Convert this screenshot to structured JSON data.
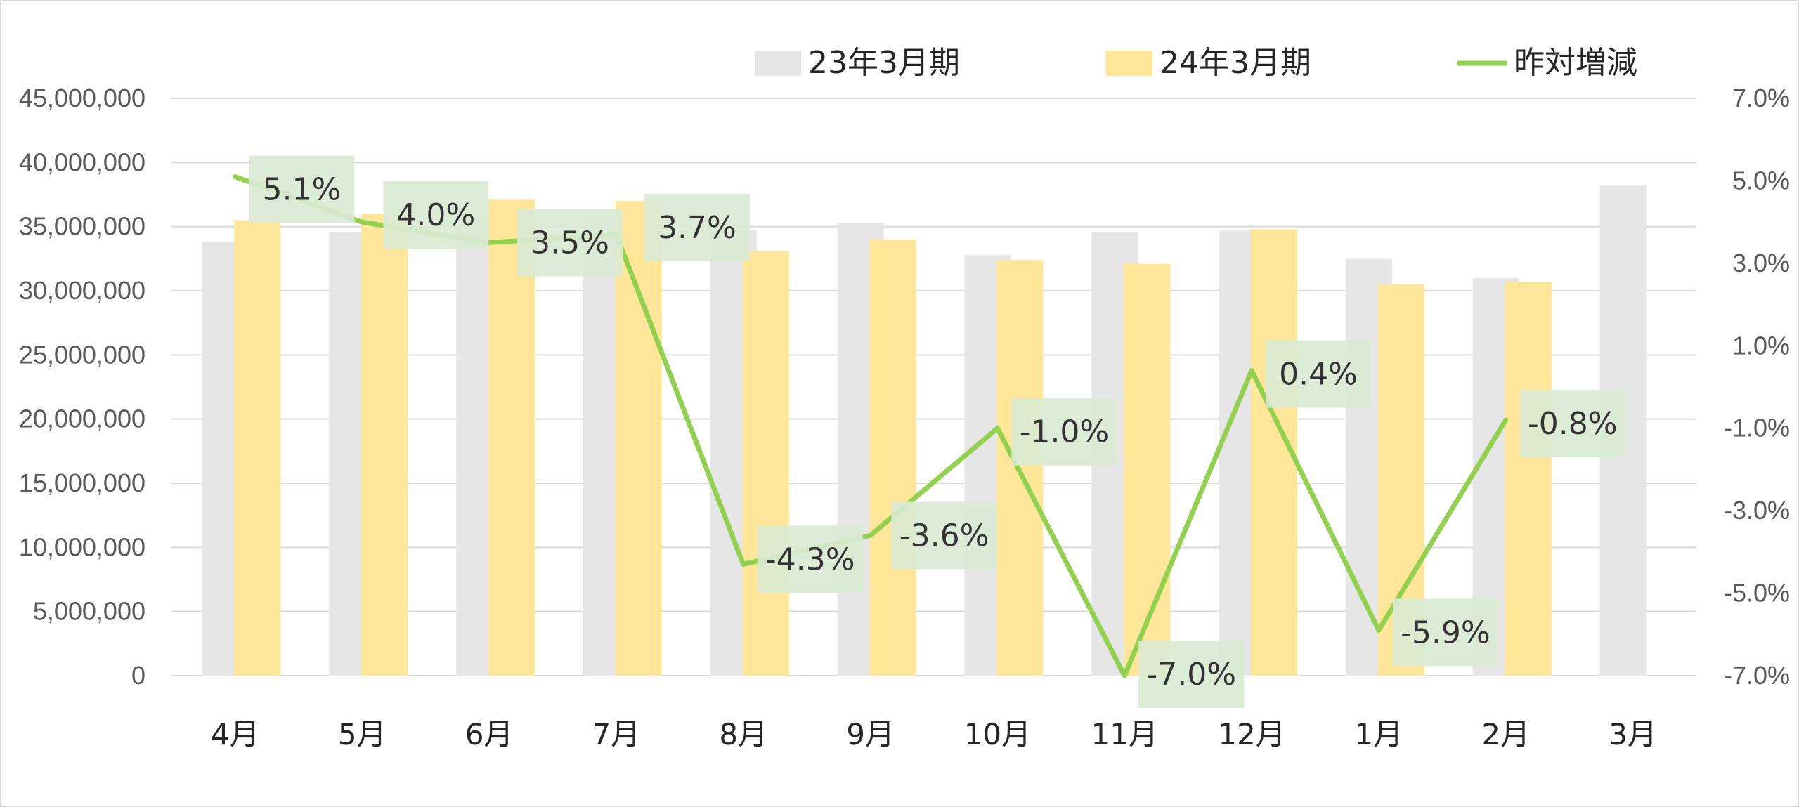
{
  "chart_data": {
    "type": "bar",
    "categories": [
      "4月",
      "5月",
      "6月",
      "7月",
      "8月",
      "9月",
      "10月",
      "11月",
      "12月",
      "1月",
      "2月",
      "3月"
    ],
    "series": [
      {
        "name": "23年3月期",
        "type": "bar",
        "axis": "left",
        "values": [
          33800000,
          34600000,
          35900000,
          35700000,
          34700000,
          35300000,
          32800000,
          34600000,
          34700000,
          32500000,
          31000000,
          38200000
        ]
      },
      {
        "name": "24年3月期",
        "type": "bar",
        "axis": "left",
        "values": [
          35500000,
          36000000,
          37100000,
          37000000,
          33100000,
          34000000,
          32400000,
          32100000,
          34800000,
          30500000,
          30700000,
          null
        ]
      },
      {
        "name": "昨対増減",
        "type": "line",
        "axis": "right",
        "values": [
          5.1,
          4.0,
          3.5,
          3.7,
          -4.3,
          -3.6,
          -1.0,
          -7.0,
          0.4,
          -5.9,
          -0.8,
          null
        ],
        "labels": [
          "5.1%",
          "4.0%",
          "3.5%",
          "3.7%",
          "-4.3%",
          "-3.6%",
          "-1.0%",
          "-7.0%",
          "0.4%",
          "-5.9%",
          "-0.8%",
          ""
        ]
      }
    ],
    "y_left": {
      "range": [
        0,
        45000000
      ],
      "ticks": [
        0,
        5000000,
        10000000,
        15000000,
        20000000,
        25000000,
        30000000,
        35000000,
        40000000,
        45000000
      ],
      "tick_labels": [
        "0",
        "5,000,000",
        "10,000,000",
        "15,000,000",
        "20,000,000",
        "25,000,000",
        "30,000,000",
        "35,000,000",
        "40,000,000",
        "45,000,000"
      ]
    },
    "y_right": {
      "range": [
        -7.0,
        7.0
      ],
      "ticks": [
        -7.0,
        -5.0,
        -3.0,
        -1.0,
        1.0,
        3.0,
        5.0,
        7.0
      ],
      "tick_labels": [
        "-7.0%",
        "-5.0%",
        "-3.0%",
        "-1.0%",
        "1.0%",
        "3.0%",
        "5.0%",
        "7.0%"
      ]
    },
    "title": "",
    "xlabel": "",
    "ylabel": "",
    "grid": true,
    "legend_position": "top-right",
    "colors": {
      "bar_prev": "#e7e6e6",
      "bar_curr": "#ffe699",
      "line": "#92d050",
      "label_bg": "#d9ead3",
      "grid": "#d9d9d9"
    }
  }
}
